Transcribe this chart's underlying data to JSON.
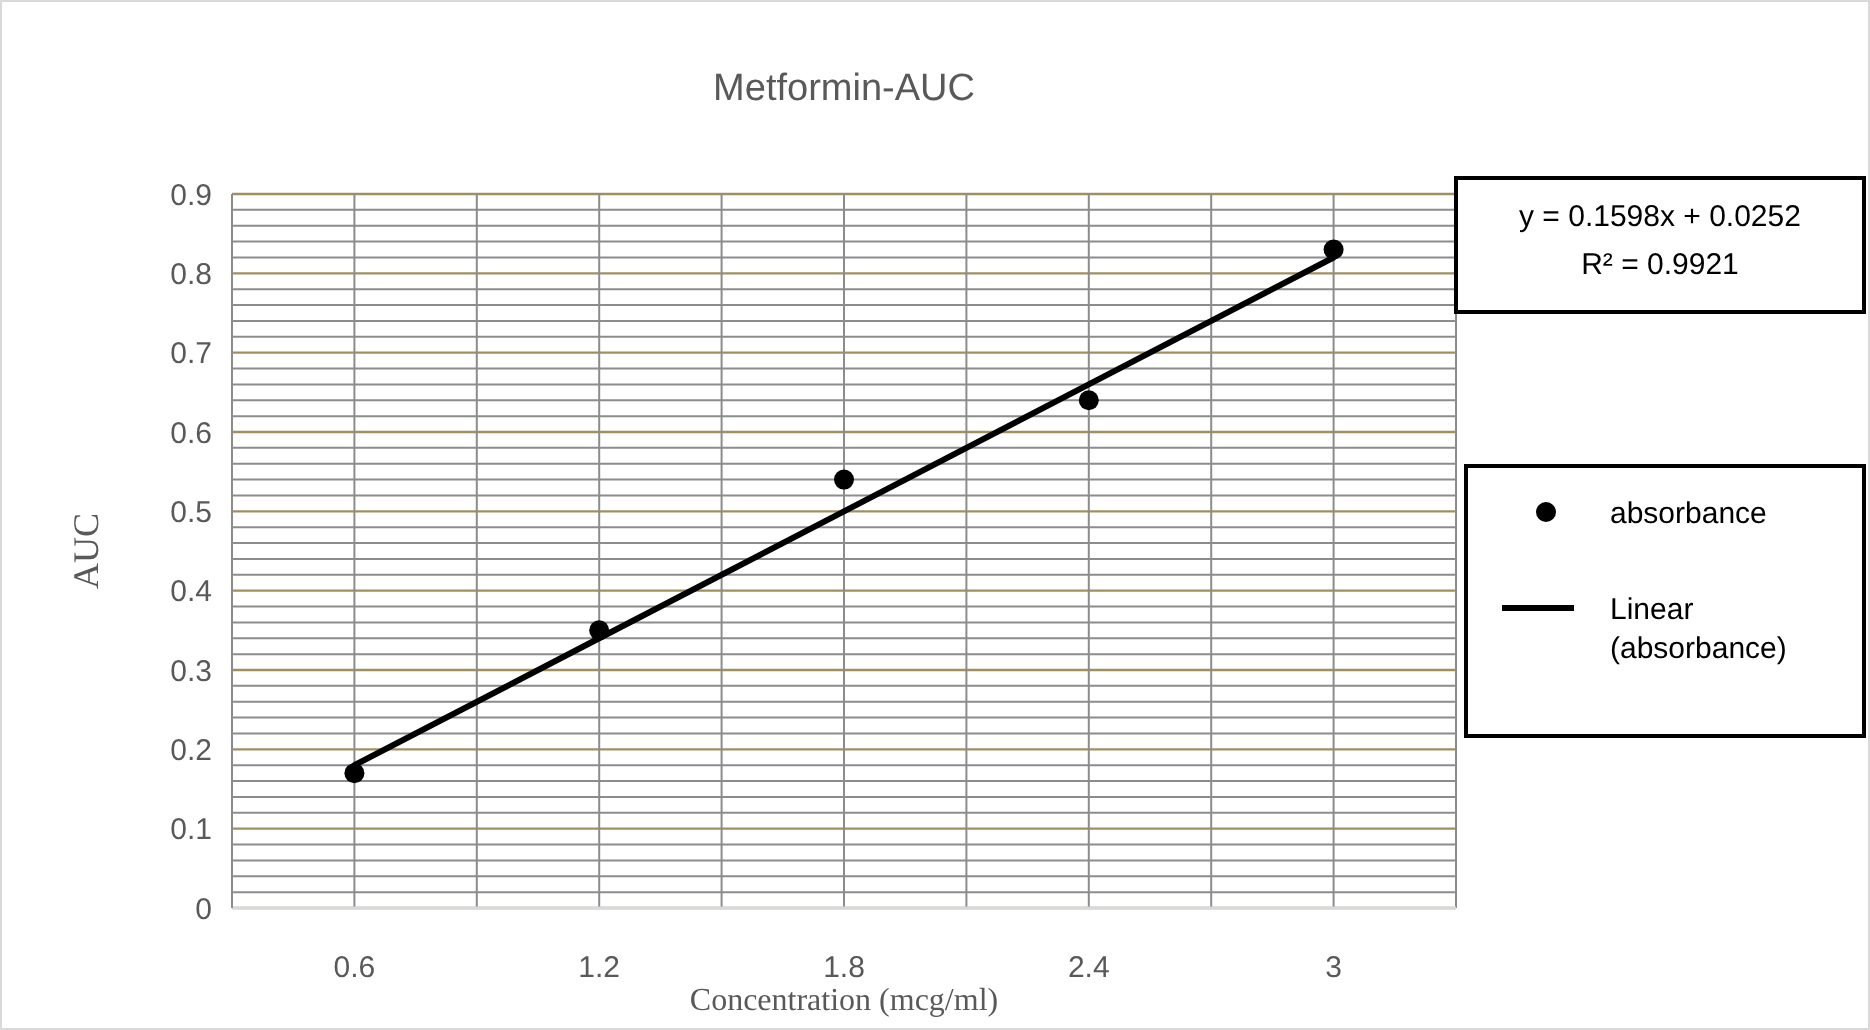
{
  "chart_data": {
    "type": "scatter",
    "title": "Metformin-AUC",
    "xlabel": "Concentration (mcg/ml)",
    "ylabel": "AUC",
    "categories": [
      "0.6",
      "1.2",
      "1.8",
      "2.4",
      "3"
    ],
    "series": [
      {
        "name": "absorbance",
        "color": "#000000",
        "marker": "circle",
        "values": [
          0.17,
          0.35,
          0.54,
          0.64,
          0.83
        ]
      },
      {
        "name": "Linear (absorbance)",
        "type": "line",
        "color": "#000000",
        "marker": "none",
        "line_style": "solid",
        "values": [
          0.18,
          0.34,
          0.5,
          0.66,
          0.82
        ]
      }
    ],
    "ylim": [
      0,
      0.9
    ],
    "yticks": [
      0,
      0.1,
      0.2,
      0.3,
      0.4,
      0.5,
      0.6,
      0.7,
      0.8,
      0.9
    ],
    "grid": true,
    "legend": "right",
    "annotations": [
      "y = 0.1598x + 0.0252",
      "R² = 0.9921"
    ]
  }
}
